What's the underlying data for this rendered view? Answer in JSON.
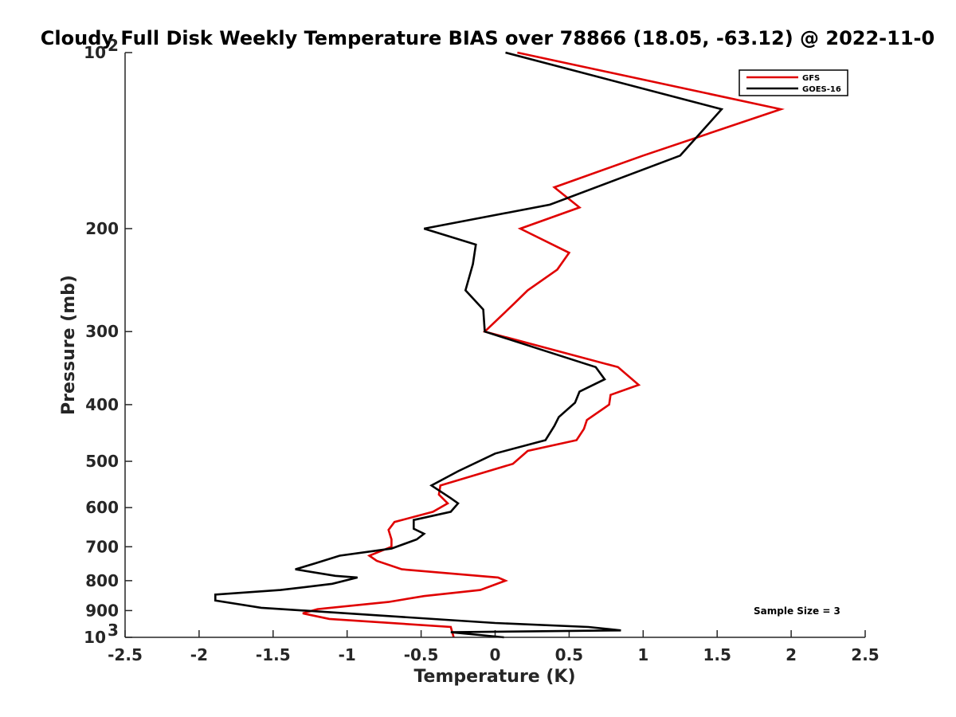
{
  "chart_data": {
    "type": "line",
    "title": "Cloudy Full Disk Weekly Temperature BIAS over 78866 (18.05, -63.12) @ 2022-11-0",
    "xlabel": "Temperature (K)",
    "ylabel": "Pressure (mb)",
    "xlim": [
      -2.5,
      2.5
    ],
    "ylim": [
      100,
      1000
    ],
    "y_scale": "log",
    "y_reversed": true,
    "x_ticks": [
      "-2.5",
      "-2",
      "-1.5",
      "-1",
      "-0.5",
      "0",
      "0.5",
      "1",
      "1.5",
      "2",
      "2.5"
    ],
    "x_tick_values": [
      -2.5,
      -2,
      -1.5,
      -1,
      -0.5,
      0,
      0.5,
      1,
      1.5,
      2,
      2.5
    ],
    "y_ticks": [
      {
        "value": 100,
        "base": "10",
        "exp": "2"
      },
      {
        "value": 200,
        "label": "200"
      },
      {
        "value": 300,
        "label": "300"
      },
      {
        "value": 400,
        "label": "400"
      },
      {
        "value": 500,
        "label": "500"
      },
      {
        "value": 600,
        "label": "600"
      },
      {
        "value": 700,
        "label": "700"
      },
      {
        "value": 800,
        "label": "800"
      },
      {
        "value": 900,
        "label": "900"
      },
      {
        "value": 1000,
        "base": "10",
        "exp": "3"
      }
    ],
    "legend": {
      "position": "top-right",
      "entries": [
        "GFS",
        "GOES-16"
      ]
    },
    "annotation": "Sample Size = 3",
    "series": [
      {
        "name": "GFS",
        "color": "#e00000",
        "points": [
          [
            0.15,
            100
          ],
          [
            1.93,
            125
          ],
          [
            1.0,
            150
          ],
          [
            0.4,
            170
          ],
          [
            0.57,
            184
          ],
          [
            0.17,
            200
          ],
          [
            0.5,
            220
          ],
          [
            0.42,
            235
          ],
          [
            0.22,
            255
          ],
          [
            0.12,
            270
          ],
          [
            -0.07,
            300
          ],
          [
            0.83,
            345
          ],
          [
            0.97,
            370
          ],
          [
            0.78,
            385
          ],
          [
            0.77,
            400
          ],
          [
            0.62,
            425
          ],
          [
            0.6,
            440
          ],
          [
            0.55,
            460
          ],
          [
            0.22,
            480
          ],
          [
            0.12,
            505
          ],
          [
            -0.37,
            550
          ],
          [
            -0.38,
            570
          ],
          [
            -0.32,
            590
          ],
          [
            -0.42,
            610
          ],
          [
            -0.68,
            635
          ],
          [
            -0.72,
            655
          ],
          [
            -0.7,
            680
          ],
          [
            -0.7,
            700
          ],
          [
            -0.85,
            725
          ],
          [
            -0.8,
            740
          ],
          [
            -0.63,
            765
          ],
          [
            0.02,
            790
          ],
          [
            0.07,
            800
          ],
          [
            -0.1,
            830
          ],
          [
            -0.48,
            850
          ],
          [
            -0.72,
            870
          ],
          [
            -1.2,
            895
          ],
          [
            -1.3,
            910
          ],
          [
            -1.12,
            930
          ],
          [
            -0.3,
            960
          ],
          [
            -0.28,
            1000
          ]
        ]
      },
      {
        "name": "GOES-16",
        "color": "#000000",
        "points": [
          [
            0.07,
            100
          ],
          [
            1.53,
            125
          ],
          [
            1.25,
            150
          ],
          [
            0.37,
            182
          ],
          [
            -0.48,
            200
          ],
          [
            -0.13,
            213
          ],
          [
            -0.15,
            230
          ],
          [
            -0.2,
            255
          ],
          [
            -0.08,
            275
          ],
          [
            -0.07,
            300
          ],
          [
            0.68,
            345
          ],
          [
            0.74,
            362
          ],
          [
            0.57,
            380
          ],
          [
            0.54,
            397
          ],
          [
            0.43,
            420
          ],
          [
            0.4,
            435
          ],
          [
            0.34,
            460
          ],
          [
            0.0,
            485
          ],
          [
            -0.25,
            520
          ],
          [
            -0.43,
            550
          ],
          [
            -0.3,
            578
          ],
          [
            -0.25,
            590
          ],
          [
            -0.3,
            610
          ],
          [
            -0.55,
            630
          ],
          [
            -0.55,
            652
          ],
          [
            -0.48,
            665
          ],
          [
            -0.53,
            680
          ],
          [
            -0.7,
            705
          ],
          [
            -1.05,
            725
          ],
          [
            -1.22,
            748
          ],
          [
            -1.35,
            765
          ],
          [
            -1.08,
            785
          ],
          [
            -0.93,
            790
          ],
          [
            -1.1,
            810
          ],
          [
            -1.45,
            830
          ],
          [
            -1.89,
            845
          ],
          [
            -1.89,
            865
          ],
          [
            -1.58,
            890
          ],
          [
            0.0,
            945
          ],
          [
            0.63,
            960
          ],
          [
            0.85,
            973
          ],
          [
            -0.3,
            980
          ],
          [
            0.06,
            1000
          ]
        ]
      }
    ]
  }
}
